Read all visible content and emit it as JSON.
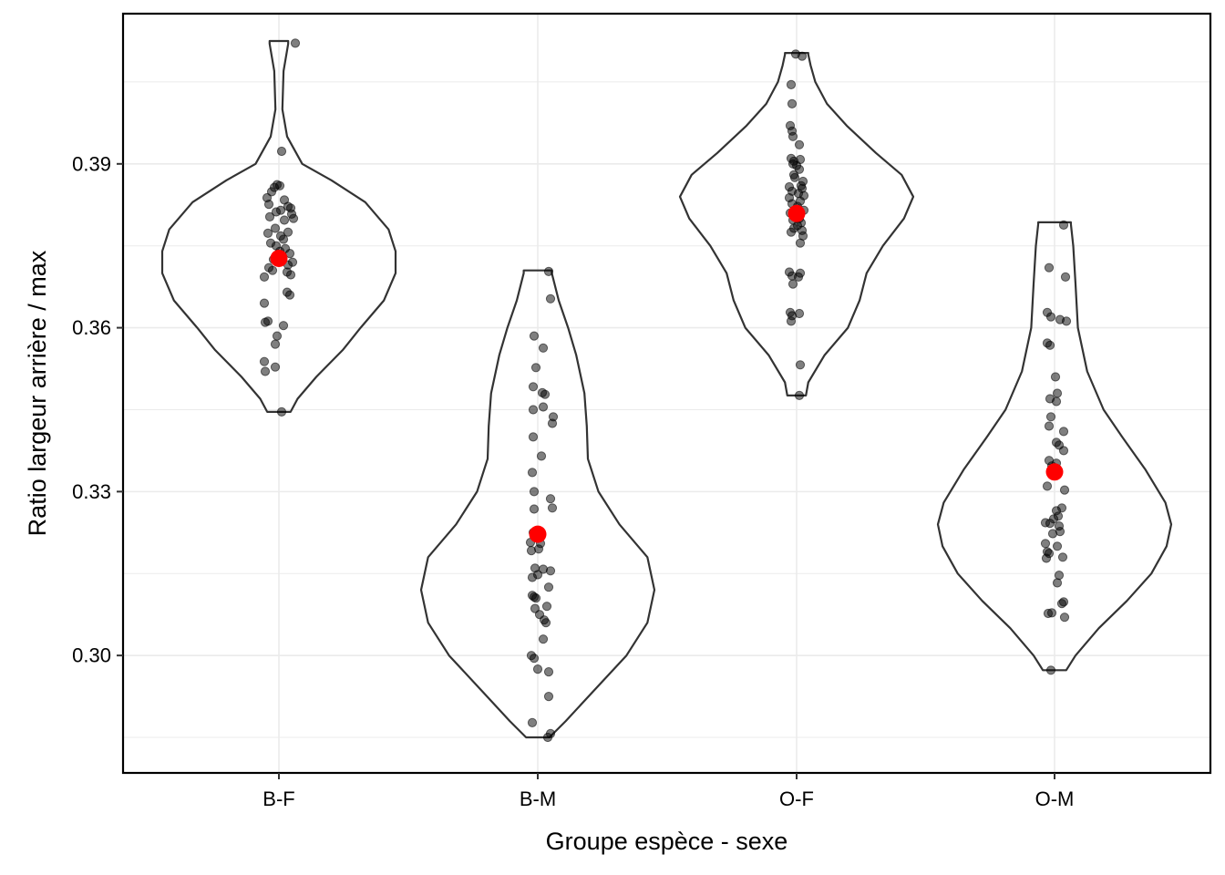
{
  "chart_data": {
    "type": "violin",
    "xlabel": "Groupe espèce - sexe",
    "ylabel": "Ratio largeur arrière / max",
    "categories": [
      "B-F",
      "B-M",
      "O-F",
      "O-M"
    ],
    "ylim": [
      0.2785,
      0.4175
    ],
    "yticks": [
      0.3,
      0.33,
      0.36,
      0.39
    ],
    "ytick_labels": [
      "0.30",
      "0.33",
      "0.36",
      "0.39"
    ],
    "grid": true,
    "legend": "none",
    "colors": {
      "violin_stroke": "#333333",
      "points": "#000000",
      "mean_marker": "#ff0000",
      "grid": "#ebebeb"
    },
    "means": [
      0.3727,
      0.3222,
      0.3809,
      0.3336
    ],
    "violins": [
      {
        "category": "B-F",
        "profile": [
          [
            0.3446,
            0.1
          ],
          [
            0.347,
            0.16
          ],
          [
            0.351,
            0.32
          ],
          [
            0.356,
            0.55
          ],
          [
            0.36,
            0.7
          ],
          [
            0.365,
            0.9
          ],
          [
            0.37,
            1.0
          ],
          [
            0.374,
            1.0
          ],
          [
            0.378,
            0.94
          ],
          [
            0.383,
            0.74
          ],
          [
            0.387,
            0.45
          ],
          [
            0.39,
            0.2
          ],
          [
            0.395,
            0.07
          ],
          [
            0.4,
            0.03
          ],
          [
            0.407,
            0.04
          ],
          [
            0.412,
            0.08
          ],
          [
            0.4125,
            0.08
          ]
        ]
      },
      {
        "category": "B-M",
        "profile": [
          [
            0.285,
            0.1
          ],
          [
            0.288,
            0.24
          ],
          [
            0.294,
            0.5
          ],
          [
            0.3,
            0.76
          ],
          [
            0.306,
            0.94
          ],
          [
            0.312,
            1.0
          ],
          [
            0.318,
            0.94
          ],
          [
            0.324,
            0.7
          ],
          [
            0.33,
            0.52
          ],
          [
            0.336,
            0.43
          ],
          [
            0.342,
            0.42
          ],
          [
            0.348,
            0.4
          ],
          [
            0.355,
            0.33
          ],
          [
            0.36,
            0.26
          ],
          [
            0.365,
            0.18
          ],
          [
            0.37,
            0.12
          ],
          [
            0.3705,
            0.12
          ]
        ]
      },
      {
        "category": "O-F",
        "profile": [
          [
            0.3476,
            0.08
          ],
          [
            0.35,
            0.1
          ],
          [
            0.355,
            0.24
          ],
          [
            0.36,
            0.44
          ],
          [
            0.365,
            0.54
          ],
          [
            0.37,
            0.6
          ],
          [
            0.375,
            0.74
          ],
          [
            0.38,
            0.92
          ],
          [
            0.384,
            1.0
          ],
          [
            0.388,
            0.9
          ],
          [
            0.392,
            0.68
          ],
          [
            0.397,
            0.43
          ],
          [
            0.401,
            0.26
          ],
          [
            0.405,
            0.16
          ],
          [
            0.408,
            0.12
          ],
          [
            0.41,
            0.1
          ],
          [
            0.4103,
            0.1
          ]
        ]
      },
      {
        "category": "O-M",
        "profile": [
          [
            0.2973,
            0.1
          ],
          [
            0.3,
            0.18
          ],
          [
            0.305,
            0.38
          ],
          [
            0.31,
            0.62
          ],
          [
            0.315,
            0.83
          ],
          [
            0.32,
            0.96
          ],
          [
            0.324,
            1.0
          ],
          [
            0.328,
            0.95
          ],
          [
            0.334,
            0.78
          ],
          [
            0.34,
            0.58
          ],
          [
            0.345,
            0.42
          ],
          [
            0.352,
            0.28
          ],
          [
            0.36,
            0.2
          ],
          [
            0.368,
            0.18
          ],
          [
            0.375,
            0.16
          ],
          [
            0.379,
            0.14
          ],
          [
            0.3793,
            0.14
          ]
        ]
      }
    ],
    "points": [
      {
        "category": "B-F",
        "values": [
          0.4121,
          0.3923,
          0.3862,
          0.386,
          0.3857,
          0.3849,
          0.3838,
          0.3834,
          0.3826,
          0.3822,
          0.3819,
          0.3815,
          0.3812,
          0.3808,
          0.3803,
          0.38,
          0.3797,
          0.3782,
          0.3775,
          0.3773,
          0.3768,
          0.3762,
          0.3755,
          0.375,
          0.3745,
          0.374,
          0.3736,
          0.373,
          0.3725,
          0.372,
          0.3715,
          0.371,
          0.3705,
          0.3702,
          0.3697,
          0.3693,
          0.3665,
          0.366,
          0.3645,
          0.3612,
          0.361,
          0.3604,
          0.3585,
          0.357,
          0.3538,
          0.3528,
          0.352,
          0.3446
        ],
        "jitter": [
          0.18,
          0.03,
          -0.02,
          0.01,
          -0.05,
          -0.08,
          -0.13,
          0.06,
          -0.11,
          0.1,
          0.13,
          0.02,
          -0.03,
          0.14,
          -0.1,
          0.16,
          0.06,
          -0.04,
          0.1,
          -0.12,
          0.02,
          0.05,
          -0.09,
          -0.03,
          0.07,
          0.01,
          0.12,
          0.04,
          -0.06,
          0.15,
          0.1,
          -0.11,
          -0.07,
          0.09,
          0.13,
          -0.16,
          0.09,
          0.12,
          -0.16,
          -0.12,
          -0.15,
          0.05,
          -0.02,
          -0.04,
          -0.16,
          -0.04,
          -0.15,
          0.03
        ]
      },
      {
        "category": "B-M",
        "values": [
          0.3703,
          0.3653,
          0.3585,
          0.3563,
          0.3527,
          0.3492,
          0.3481,
          0.3478,
          0.3455,
          0.345,
          0.3437,
          0.3425,
          0.34,
          0.3365,
          0.3335,
          0.33,
          0.3287,
          0.327,
          0.3268,
          0.3225,
          0.3207,
          0.3205,
          0.3195,
          0.3192,
          0.316,
          0.3158,
          0.3155,
          0.3148,
          0.3143,
          0.3125,
          0.311,
          0.3107,
          0.3105,
          0.309,
          0.3086,
          0.3075,
          0.3065,
          0.306,
          0.303,
          0.3,
          0.2995,
          0.2975,
          0.297,
          0.2925,
          0.2877,
          0.2857,
          0.285
        ],
        "jitter": [
          0.12,
          0.14,
          -0.04,
          0.06,
          -0.02,
          -0.05,
          0.05,
          0.08,
          0.06,
          -0.05,
          0.17,
          0.16,
          -0.05,
          0.04,
          -0.06,
          -0.04,
          0.14,
          0.16,
          -0.04,
          -0.05,
          -0.08,
          0.03,
          0.01,
          -0.07,
          -0.03,
          0.06,
          0.14,
          0.0,
          -0.06,
          0.12,
          -0.06,
          -0.04,
          -0.02,
          0.1,
          -0.03,
          0.02,
          0.07,
          0.09,
          0.06,
          -0.07,
          -0.04,
          0.0,
          0.12,
          0.12,
          -0.06,
          0.14,
          0.11
        ]
      },
      {
        "category": "O-F",
        "values": [
          0.4101,
          0.4097,
          0.4045,
          0.401,
          0.397,
          0.396,
          0.395,
          0.3935,
          0.391,
          0.3908,
          0.3905,
          0.39,
          0.3897,
          0.389,
          0.388,
          0.3875,
          0.3868,
          0.386,
          0.3858,
          0.3855,
          0.385,
          0.3846,
          0.3842,
          0.3838,
          0.3832,
          0.3827,
          0.3822,
          0.3815,
          0.381,
          0.38,
          0.3797,
          0.3792,
          0.3787,
          0.3782,
          0.3778,
          0.3775,
          0.3768,
          0.3755,
          0.3702,
          0.37,
          0.3695,
          0.3693,
          0.368,
          0.3628,
          0.3626,
          0.3622,
          0.3612,
          0.3532,
          0.3476
        ],
        "jitter": [
          -0.01,
          0.06,
          -0.06,
          -0.05,
          -0.07,
          -0.05,
          -0.04,
          0.03,
          -0.06,
          0.04,
          -0.03,
          -0.04,
          0.0,
          0.03,
          -0.03,
          -0.02,
          0.07,
          0.05,
          -0.08,
          0.06,
          -0.05,
          0.02,
          0.08,
          -0.08,
          0.04,
          -0.05,
          0.01,
          0.08,
          -0.07,
          0.03,
          -0.04,
          0.05,
          0.01,
          -0.03,
          0.06,
          -0.06,
          0.07,
          0.04,
          -0.08,
          0.04,
          -0.05,
          0.02,
          -0.04,
          -0.07,
          0.03,
          -0.05,
          -0.06,
          0.04,
          0.03
        ]
      },
      {
        "category": "O-M",
        "values": [
          0.3788,
          0.371,
          0.3693,
          0.3628,
          0.362,
          0.3615,
          0.3612,
          0.3572,
          0.3568,
          0.351,
          0.348,
          0.347,
          0.3465,
          0.3437,
          0.342,
          0.341,
          0.339,
          0.3385,
          0.3375,
          0.3357,
          0.3352,
          0.3347,
          0.331,
          0.3303,
          0.327,
          0.3265,
          0.3255,
          0.325,
          0.3243,
          0.3242,
          0.3237,
          0.3227,
          0.3223,
          0.3205,
          0.32,
          0.319,
          0.3187,
          0.318,
          0.3178,
          0.3147,
          0.3133,
          0.3098,
          0.3095,
          0.3078,
          0.3077,
          0.307,
          0.2973
        ],
        "jitter": [
          0.1,
          -0.06,
          0.12,
          -0.08,
          -0.04,
          0.06,
          0.13,
          -0.08,
          -0.05,
          0.01,
          0.03,
          -0.05,
          0.02,
          -0.04,
          -0.06,
          0.1,
          0.02,
          0.05,
          0.1,
          -0.06,
          0.02,
          -0.03,
          -0.08,
          0.11,
          0.08,
          0.02,
          0.04,
          -0.01,
          -0.1,
          -0.05,
          0.05,
          0.06,
          -0.02,
          -0.1,
          0.03,
          -0.08,
          -0.06,
          0.09,
          -0.09,
          0.05,
          0.03,
          0.1,
          0.08,
          -0.03,
          -0.07,
          0.11,
          -0.04
        ]
      }
    ]
  }
}
